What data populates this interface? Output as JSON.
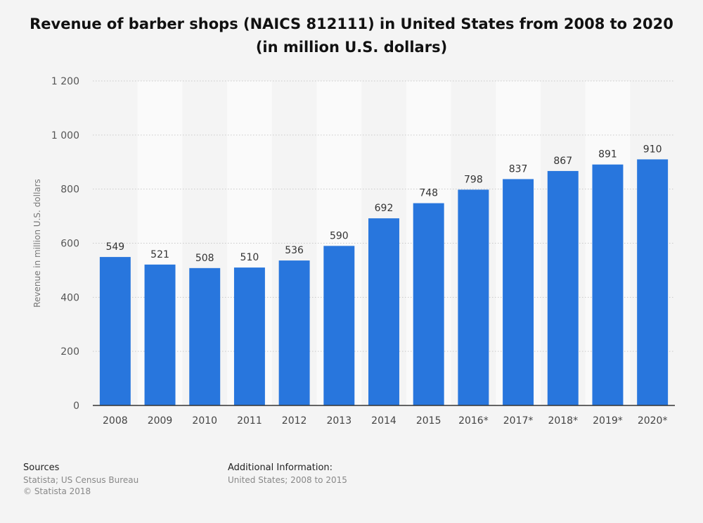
{
  "title": "Revenue of barber shops (NAICS 812111) in United States from 2008 to 2020 (in million U.S. dollars)",
  "chart_data": {
    "type": "bar",
    "categories": [
      "2008",
      "2009",
      "2010",
      "2011",
      "2012",
      "2013",
      "2014",
      "2015",
      "2016*",
      "2017*",
      "2018*",
      "2019*",
      "2020*"
    ],
    "values": [
      549,
      521,
      508,
      510,
      536,
      590,
      692,
      748,
      798,
      837,
      867,
      891,
      910
    ],
    "ylabel": "Revenue in million U.S. dollars",
    "ylim": [
      0,
      1200
    ],
    "yticks": [
      0,
      200,
      400,
      600,
      800,
      1000,
      1200
    ],
    "ytick_labels": [
      "0",
      "200",
      "400",
      "600",
      "800",
      "1 000",
      "1 200"
    ],
    "bar_color": "#2876dd",
    "grid": true
  },
  "footer": {
    "sources_heading": "Sources",
    "sources_line1": "Statista; US Census Bureau",
    "sources_line2": "© Statista 2018",
    "info_heading": "Additional Information:",
    "info_line1": "United States; 2008 to 2015"
  }
}
